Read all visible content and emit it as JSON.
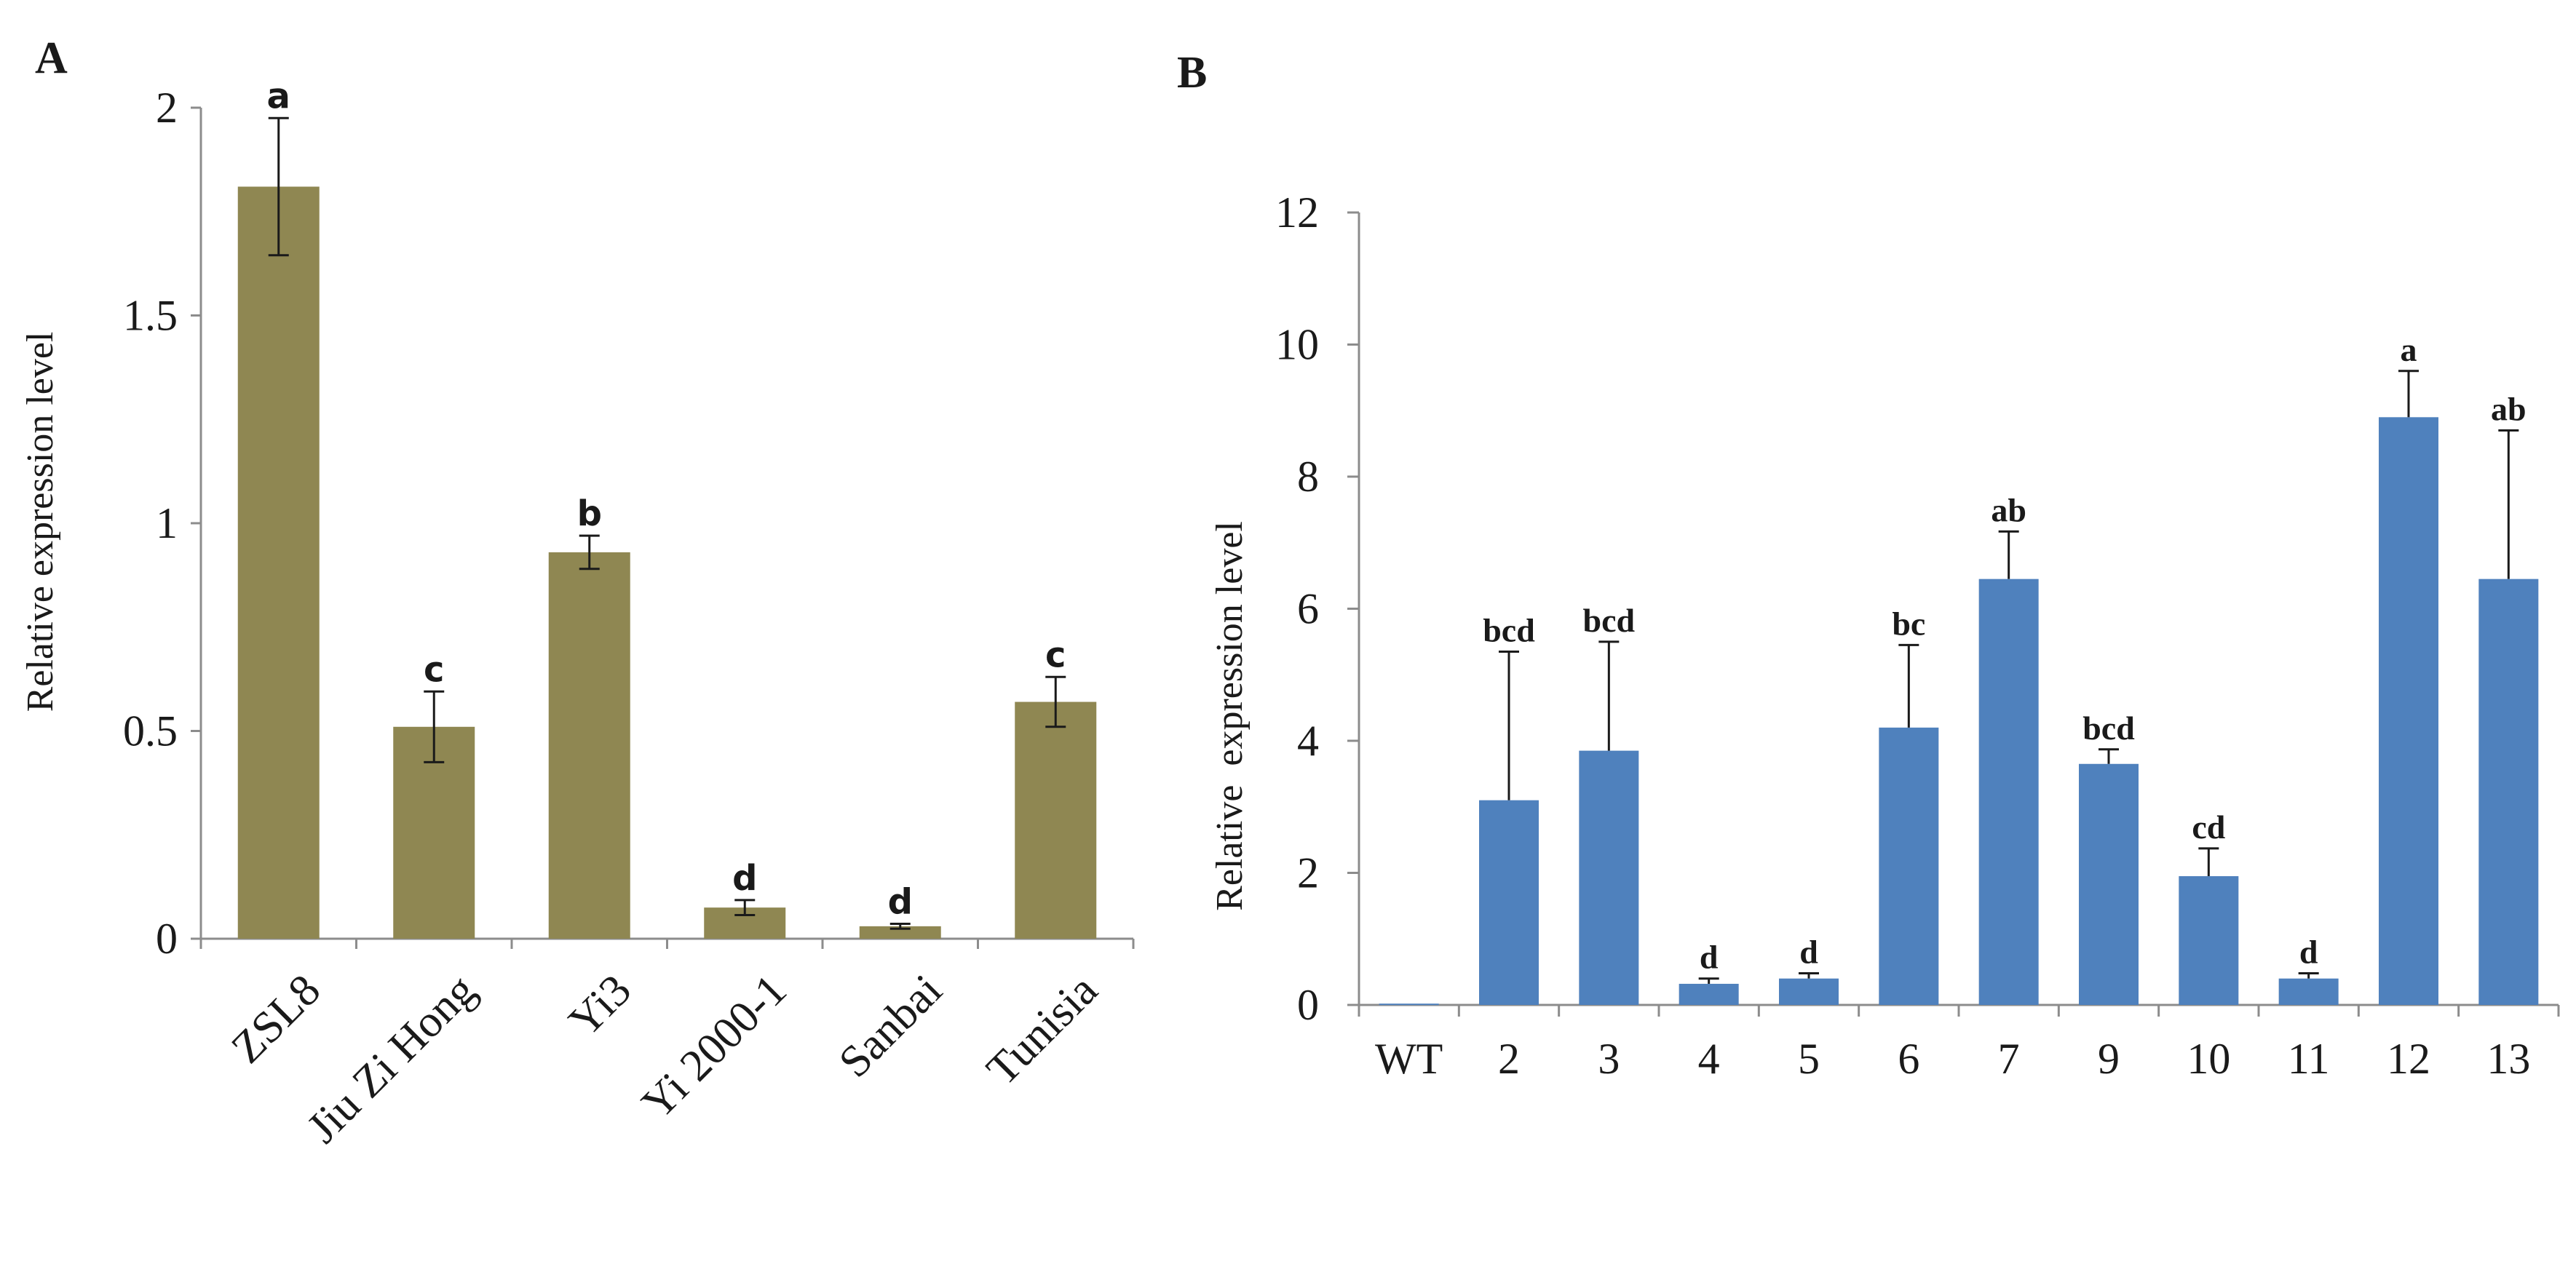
{
  "chart_data": [
    {
      "panel": "A",
      "type": "bar",
      "title": "",
      "xlabel": "",
      "ylabel": "Relative expression level",
      "ylim": [
        0,
        2
      ],
      "yticks": [
        "0",
        "0.5",
        "1",
        "1.5",
        "2"
      ],
      "categories": [
        "ZSL8",
        "Jiu Zi Hong",
        "Yi3",
        "Yi 2000-1",
        "Sanbai",
        "Tunisia"
      ],
      "values": [
        1.81,
        0.51,
        0.93,
        0.075,
        0.03,
        0.57
      ],
      "errors": [
        0.165,
        0.085,
        0.04,
        0.018,
        0.006,
        0.06
      ],
      "significance": [
        "a",
        "c",
        "b",
        "d",
        "d",
        "c"
      ],
      "bar_color": "#8f8752",
      "error_bars": "two-sided"
    },
    {
      "panel": "B",
      "type": "bar",
      "title": "",
      "xlabel": "",
      "ylabel": "Relative  expression level",
      "ylim": [
        0,
        12
      ],
      "yticks": [
        "0",
        "2",
        "4",
        "6",
        "8",
        "10",
        "12"
      ],
      "categories": [
        "WT",
        "2",
        "3",
        "4",
        "5",
        "6",
        "7",
        "9",
        "10",
        "11",
        "12",
        "13"
      ],
      "values": [
        0.02,
        3.1,
        3.85,
        0.32,
        0.4,
        4.2,
        6.45,
        3.65,
        1.95,
        0.4,
        8.9,
        6.45
      ],
      "errors": [
        0,
        2.25,
        1.65,
        0.08,
        0.08,
        1.25,
        0.72,
        0.22,
        0.42,
        0.08,
        0.7,
        2.25
      ],
      "significance": [
        "",
        "bcd",
        "bcd",
        "d",
        "d",
        "bc",
        "ab",
        "bcd",
        "cd",
        "d",
        "a",
        "ab"
      ],
      "bar_color": "#4f81bd",
      "error_bars": "upper"
    }
  ]
}
